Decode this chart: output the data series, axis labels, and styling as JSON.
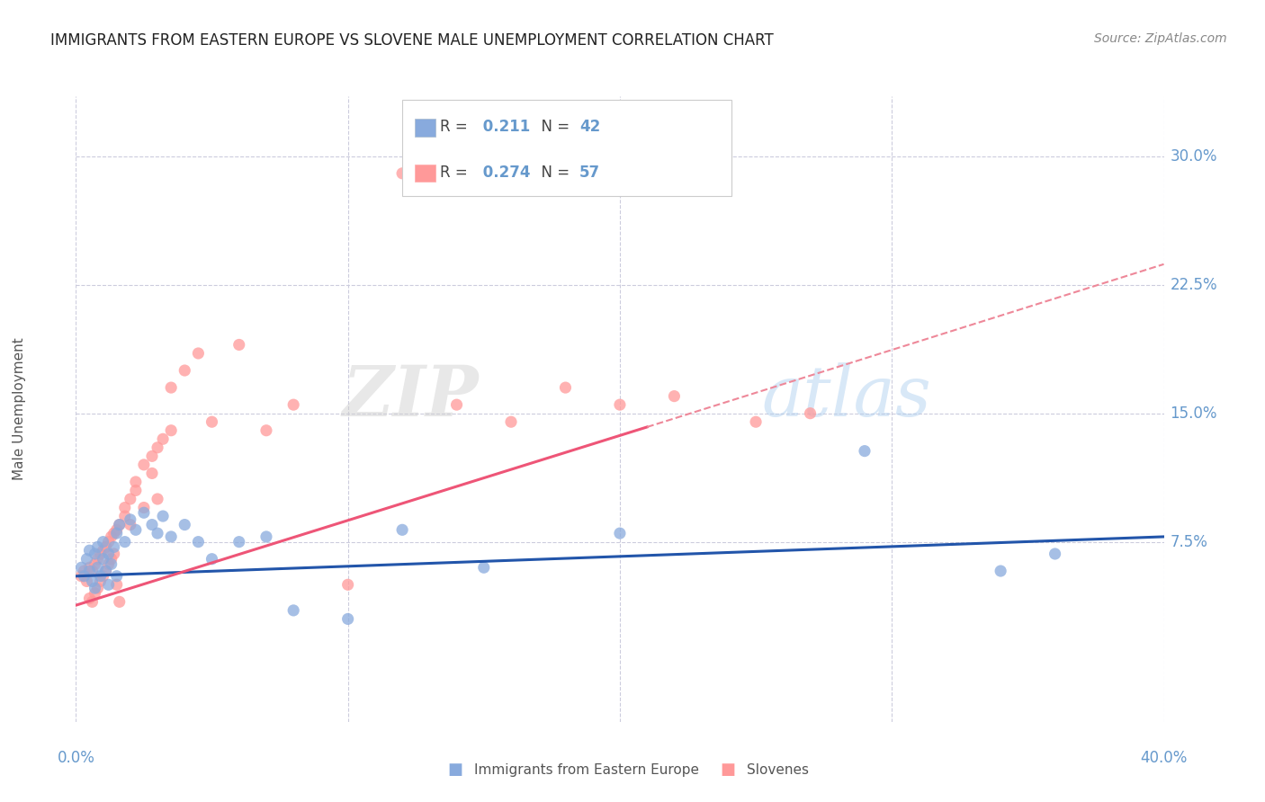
{
  "title": "IMMIGRANTS FROM EASTERN EUROPE VS SLOVENE MALE UNEMPLOYMENT CORRELATION CHART",
  "source": "Source: ZipAtlas.com",
  "ylabel": "Male Unemployment",
  "y_tick_labels": [
    "7.5%",
    "15.0%",
    "22.5%",
    "30.0%"
  ],
  "y_tick_values": [
    0.075,
    0.15,
    0.225,
    0.3
  ],
  "x_range": [
    0.0,
    0.4
  ],
  "y_range": [
    -0.03,
    0.335
  ],
  "blue_color": "#88AADD",
  "pink_color": "#FF9999",
  "blue_line_color": "#2255AA",
  "pink_line_color": "#EE5577",
  "pink_dash_color": "#EE8899",
  "grid_color": "#CCCCDD",
  "axis_label_color": "#6699CC",
  "watermark_color": "#C8D8E8",
  "blue_scatter_x": [
    0.002,
    0.003,
    0.004,
    0.005,
    0.005,
    0.006,
    0.007,
    0.007,
    0.008,
    0.008,
    0.009,
    0.01,
    0.01,
    0.011,
    0.012,
    0.012,
    0.013,
    0.014,
    0.015,
    0.015,
    0.016,
    0.018,
    0.02,
    0.022,
    0.025,
    0.028,
    0.03,
    0.032,
    0.035,
    0.04,
    0.045,
    0.05,
    0.06,
    0.07,
    0.08,
    0.1,
    0.12,
    0.15,
    0.2,
    0.29,
    0.34,
    0.36
  ],
  "blue_scatter_y": [
    0.06,
    0.055,
    0.065,
    0.058,
    0.07,
    0.052,
    0.068,
    0.048,
    0.06,
    0.072,
    0.055,
    0.065,
    0.075,
    0.058,
    0.068,
    0.05,
    0.062,
    0.072,
    0.055,
    0.08,
    0.085,
    0.075,
    0.088,
    0.082,
    0.092,
    0.085,
    0.08,
    0.09,
    0.078,
    0.085,
    0.075,
    0.065,
    0.075,
    0.078,
    0.035,
    0.03,
    0.082,
    0.06,
    0.08,
    0.128,
    0.058,
    0.068
  ],
  "pink_scatter_x": [
    0.002,
    0.003,
    0.004,
    0.005,
    0.005,
    0.006,
    0.006,
    0.007,
    0.007,
    0.008,
    0.008,
    0.009,
    0.009,
    0.01,
    0.01,
    0.011,
    0.011,
    0.012,
    0.012,
    0.013,
    0.013,
    0.014,
    0.014,
    0.015,
    0.015,
    0.016,
    0.016,
    0.018,
    0.018,
    0.02,
    0.02,
    0.022,
    0.022,
    0.025,
    0.025,
    0.028,
    0.028,
    0.03,
    0.03,
    0.032,
    0.035,
    0.035,
    0.04,
    0.045,
    0.05,
    0.06,
    0.07,
    0.08,
    0.1,
    0.12,
    0.14,
    0.16,
    0.18,
    0.2,
    0.22,
    0.25,
    0.27
  ],
  "pink_scatter_y": [
    0.055,
    0.058,
    0.052,
    0.06,
    0.042,
    0.058,
    0.04,
    0.062,
    0.045,
    0.065,
    0.048,
    0.068,
    0.052,
    0.07,
    0.055,
    0.072,
    0.058,
    0.075,
    0.062,
    0.078,
    0.065,
    0.08,
    0.068,
    0.082,
    0.05,
    0.085,
    0.04,
    0.09,
    0.095,
    0.1,
    0.085,
    0.105,
    0.11,
    0.12,
    0.095,
    0.125,
    0.115,
    0.13,
    0.1,
    0.135,
    0.165,
    0.14,
    0.175,
    0.185,
    0.145,
    0.19,
    0.14,
    0.155,
    0.05,
    0.29,
    0.155,
    0.145,
    0.165,
    0.155,
    0.16,
    0.145,
    0.15
  ],
  "blue_line": {
    "x0": 0.0,
    "y0": 0.055,
    "x1": 0.4,
    "y1": 0.078
  },
  "pink_line_solid": {
    "x0": 0.0,
    "y0": 0.038,
    "x1": 0.21,
    "y1": 0.142
  },
  "pink_line_dash": {
    "x0": 0.21,
    "y0": 0.142,
    "x1": 0.4,
    "y1": 0.237
  },
  "legend": {
    "r1_text": "R =  0.211   N = 42",
    "r2_text": "R =  0.274   N = 57"
  },
  "bottom_legend": {
    "label1": "Immigrants from Eastern Europe",
    "label2": "Slovenes"
  },
  "title_fontsize": 12,
  "source_fontsize": 10,
  "tick_fontsize": 12,
  "legend_fontsize": 12
}
